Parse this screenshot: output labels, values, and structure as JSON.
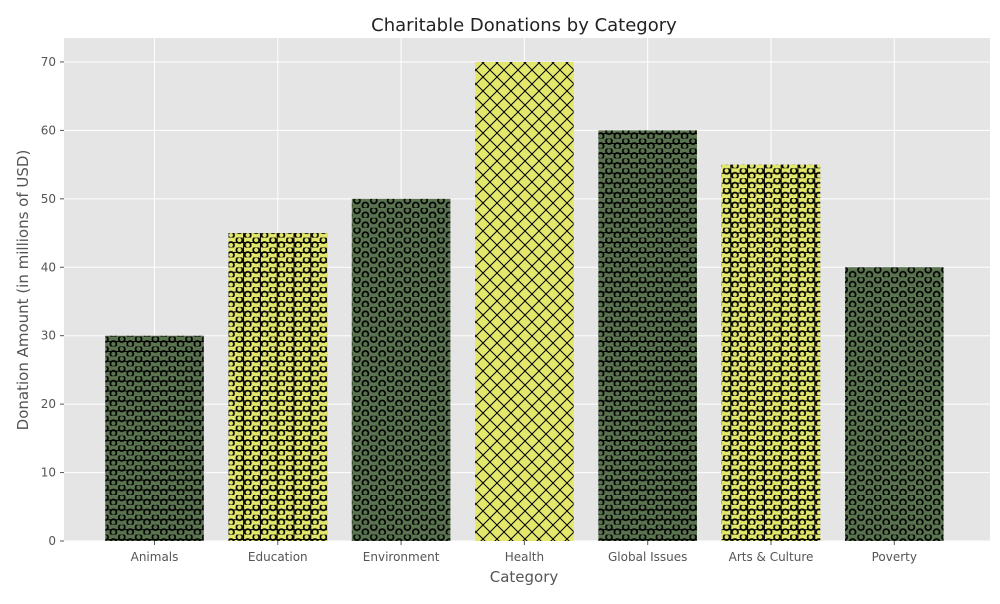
{
  "chart_data": {
    "type": "bar",
    "title": "Charitable Donations by Category",
    "xlabel": "Category",
    "ylabel": "Donation Amount (in millions of USD)",
    "categories": [
      "Animals",
      "Education",
      "Environment",
      "Health",
      "Global Issues",
      "Arts & Culture",
      "Poverty"
    ],
    "values": [
      30,
      45,
      50,
      70,
      60,
      55,
      40
    ],
    "ylim": [
      0,
      73.5
    ],
    "yticks": [
      0,
      10,
      20,
      30,
      40,
      50,
      60,
      70
    ],
    "grid": true,
    "style": {
      "plot_background": "#e5e5e5",
      "grid_color": "#ffffff",
      "text_color": "#555555",
      "title_color": "#222222"
    },
    "bar_styles": [
      {
        "fill": "#5b7450",
        "hatch": "o-"
      },
      {
        "fill": "#e3e86c",
        "hatch": "o+"
      },
      {
        "fill": "#5b7450",
        "hatch": "o"
      },
      {
        "fill": "#e3e86c",
        "hatch": "x"
      },
      {
        "fill": "#5b7450",
        "hatch": "o-"
      },
      {
        "fill": "#e3e86c",
        "hatch": "o+"
      },
      {
        "fill": "#5b7450",
        "hatch": "o"
      }
    ]
  }
}
